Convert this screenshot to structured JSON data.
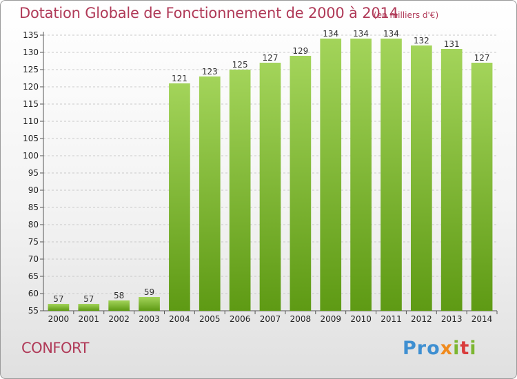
{
  "title": "Dotation Globale de Fonctionnement de 2000 à 2014",
  "units": "(en milliers d'€)",
  "commune": "CONFORT",
  "logo": {
    "p1": "Pro",
    "p2": "x",
    "p3": "i",
    "p4": "t",
    "p5": "i"
  },
  "colors": {
    "title": "#b03a58",
    "bar_top": "#a3d45a",
    "bar_bottom": "#5e9a14",
    "grid": "#c9c9c9"
  },
  "chart_data": {
    "type": "bar",
    "title": "Dotation Globale de Fonctionnement de 2000 à 2014",
    "xlabel": "",
    "ylabel": "",
    "categories": [
      "2000",
      "2001",
      "2002",
      "2003",
      "2004",
      "2005",
      "2006",
      "2007",
      "2008",
      "2009",
      "2010",
      "2011",
      "2012",
      "2013",
      "2014"
    ],
    "values": [
      57,
      57,
      58,
      59,
      121,
      123,
      125,
      127,
      129,
      134,
      134,
      134,
      132,
      131,
      127
    ],
    "ylim": [
      55,
      135
    ],
    "yticks": [
      55,
      60,
      65,
      70,
      75,
      80,
      85,
      90,
      95,
      100,
      105,
      110,
      115,
      120,
      125,
      130,
      135
    ],
    "grid": "horizontal dashed"
  }
}
